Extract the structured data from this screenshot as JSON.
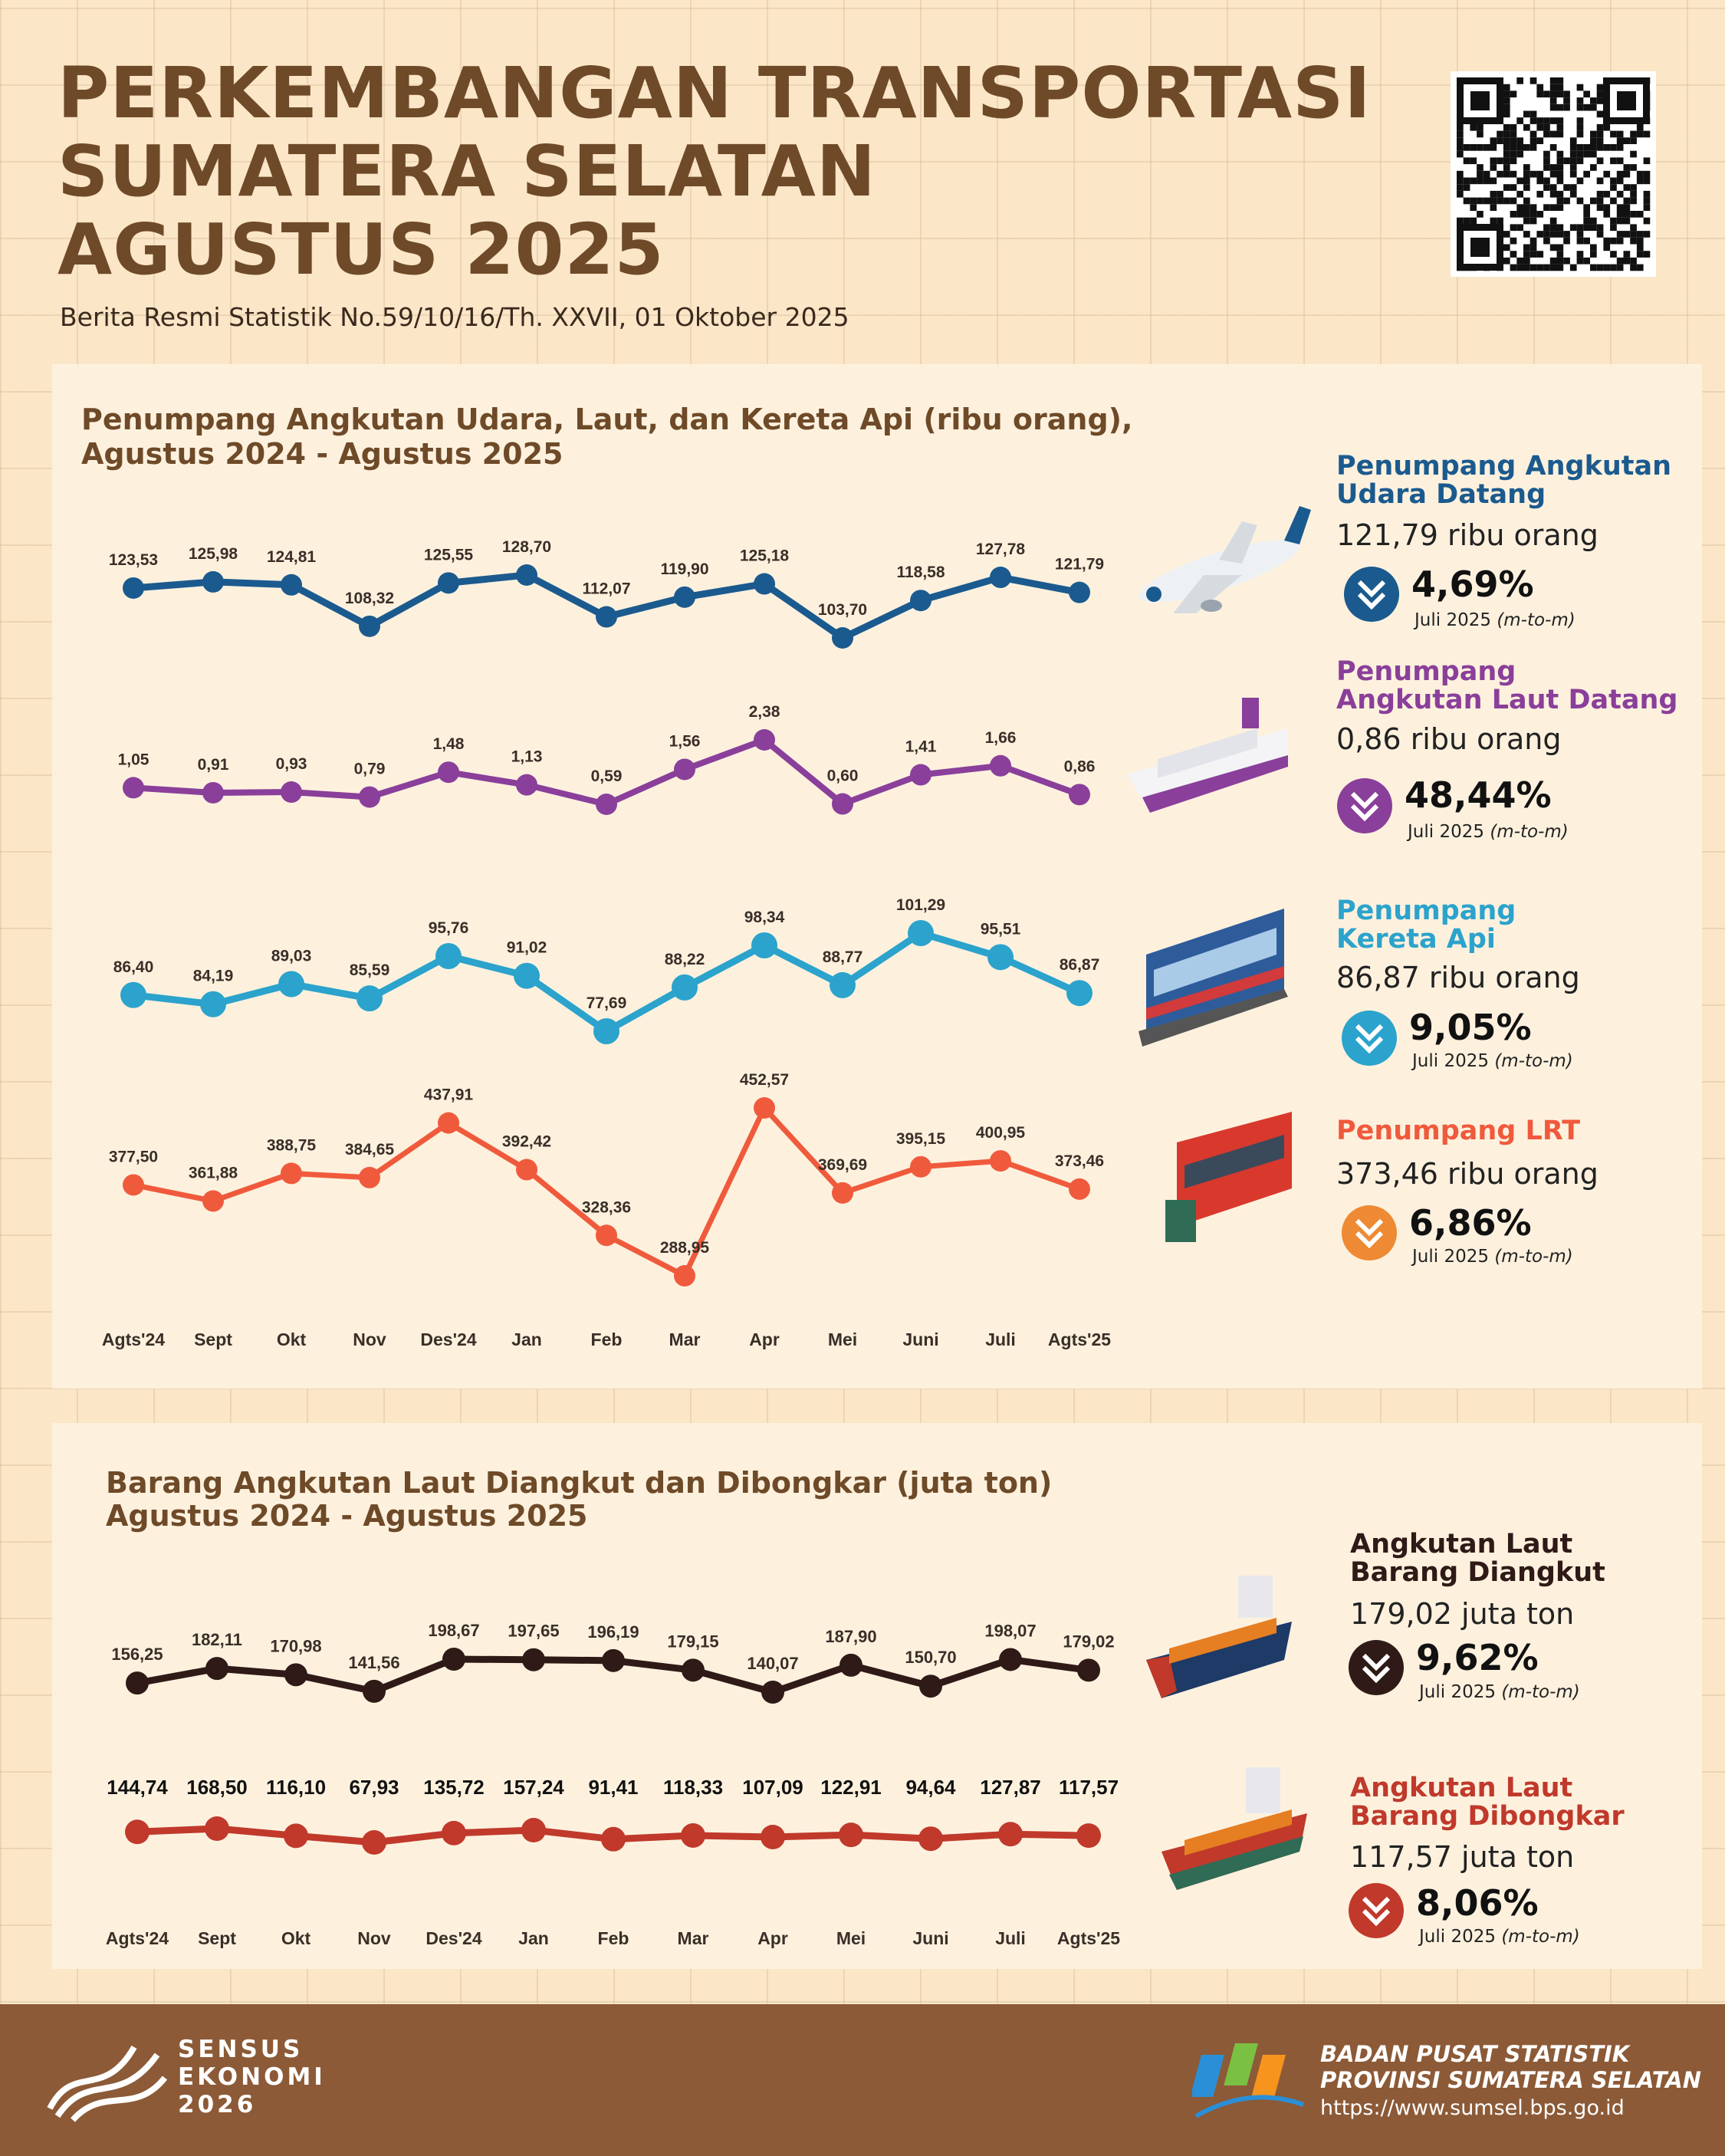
{
  "header": {
    "title_lines": [
      "PERKEMBANGAN TRANSPORTASI",
      "SUMATERA SELATAN",
      "AGUSTUS 2025"
    ],
    "subtitle": "Berita Resmi Statistik No.59/10/16/Th. XXVII, 01 Oktober 2025",
    "qr_icon": "qr-code"
  },
  "panel1": {
    "heading_lines": [
      "Penumpang Angkutan Udara, Laut, dan Kereta Api (ribu orang),",
      "Agustus 2024 - Agustus 2025"
    ]
  },
  "panel2": {
    "heading_lines": [
      "Barang Angkutan Laut Diangkut dan Dibongkar (juta ton)",
      "Agustus 2024 - Agustus 2025"
    ]
  },
  "summaries": [
    {
      "title_lines": [
        "Penumpang Angkutan",
        "Udara Datang"
      ],
      "value": "121,79 ribu orang",
      "pct": "4,69%",
      "sub": "Juli 2025",
      "sub_italic": "(m-to-m)",
      "color": "#1b5a8e",
      "circle_color": "#1b5a8e",
      "icon": "airplane",
      "trend": "down"
    },
    {
      "title_lines": [
        "Penumpang",
        "Angkutan Laut Datang"
      ],
      "value": "0,86 ribu orang",
      "pct": "48,44%",
      "sub": "Juli 2025",
      "sub_italic": "(m-to-m)",
      "color": "#8a3f9a",
      "circle_color": "#8a3f9a",
      "icon": "passenger-ship",
      "trend": "down"
    },
    {
      "title_lines": [
        "Penumpang",
        "Kereta Api"
      ],
      "value": "86,87 ribu orang",
      "pct": "9,05%",
      "sub": "Juli 2025",
      "sub_italic": "(m-to-m)",
      "color": "#2ba3cc",
      "circle_color": "#2ba3cc",
      "icon": "train",
      "trend": "down"
    },
    {
      "title_lines": [
        "Penumpang LRT"
      ],
      "value": "373,46 ribu orang",
      "pct": "6,86%",
      "sub": "Juli 2025",
      "sub_italic": "(m-to-m)",
      "color": "#f05a3c",
      "circle_color": "#ee8a33",
      "icon": "lrt",
      "trend": "down"
    },
    {
      "title_lines": [
        "Angkutan Laut",
        "Barang Diangkut"
      ],
      "value": "179,02 juta ton",
      "pct": "9,62%",
      "sub": "Juli 2025",
      "sub_italic": "(m-to-m)",
      "color": "#2f1a17",
      "circle_color": "#2f1a17",
      "icon": "cargo-ship",
      "trend": "down"
    },
    {
      "title_lines": [
        "Angkutan Laut",
        "Barang Dibongkar"
      ],
      "value": "117,57 juta ton",
      "pct": "8,06%",
      "sub": "Juli 2025",
      "sub_italic": "(m-to-m)",
      "color": "#c0392b",
      "circle_color": "#c0392b",
      "icon": "cargo-ship",
      "trend": "down"
    }
  ],
  "chart_data": [
    {
      "type": "line",
      "title": "Penumpang Angkutan Udara, Laut, dan Kereta Api (ribu orang), Agustus 2024 - Agustus 2025",
      "categories": [
        "Agts'24",
        "Sept",
        "Okt",
        "Nov",
        "Des'24",
        "Jan",
        "Feb",
        "Mar",
        "Apr",
        "Mei",
        "Juni",
        "Juli",
        "Agts'25"
      ],
      "grid": false,
      "legend": "none",
      "series": [
        {
          "name": "Penumpang Angkutan Udara Datang",
          "color": "#1b5a8e",
          "values": [
            123.53,
            125.98,
            124.81,
            108.32,
            125.55,
            128.7,
            112.07,
            119.9,
            125.18,
            103.7,
            118.58,
            127.78,
            121.79
          ],
          "labels": [
            "123,53",
            "125,98",
            "124,81",
            "108,32",
            "125,55",
            "128,70",
            "112,07",
            "119,90",
            "125,18",
            "103,70",
            "118,58",
            "127,78",
            "121,79"
          ]
        },
        {
          "name": "Penumpang Angkutan Laut Datang",
          "color": "#8a3f9a",
          "values": [
            1.05,
            0.91,
            0.93,
            0.79,
            1.48,
            1.13,
            0.59,
            1.56,
            2.38,
            0.6,
            1.41,
            1.66,
            0.86
          ],
          "labels": [
            "1,05",
            "0,91",
            "0,93",
            "0,79",
            "1,48",
            "1,13",
            "0,59",
            "1,56",
            "2,38",
            "0,60",
            "1,41",
            "1,66",
            "0,86"
          ]
        },
        {
          "name": "Penumpang Kereta Api",
          "color": "#2ba3cc",
          "values": [
            86.4,
            84.19,
            89.03,
            85.59,
            95.76,
            91.02,
            77.69,
            88.22,
            98.34,
            88.77,
            101.29,
            95.51,
            86.87
          ],
          "labels": [
            "86,40",
            "84,19",
            "89,03",
            "85,59",
            "95,76",
            "91,02",
            "77,69",
            "88,22",
            "98,34",
            "88,77",
            "101,29",
            "95,51",
            "86,87"
          ]
        },
        {
          "name": "Penumpang LRT",
          "color": "#f05a3c",
          "values": [
            377.5,
            361.88,
            388.75,
            384.65,
            437.91,
            392.42,
            328.36,
            288.95,
            452.57,
            369.69,
            395.15,
            400.95,
            373.46
          ],
          "labels": [
            "377,50",
            "361,88",
            "388,75",
            "384,65",
            "437,91",
            "392,42",
            "328,36",
            "288,95",
            "452,57",
            "369,69",
            "395,15",
            "400,95",
            "373,46"
          ]
        }
      ]
    },
    {
      "type": "line",
      "title": "Barang Angkutan Laut Diangkut dan Dibongkar (juta ton) Agustus 2024 - Agustus 2025",
      "categories": [
        "Agts'24",
        "Sept",
        "Okt",
        "Nov",
        "Des'24",
        "Jan",
        "Feb",
        "Mar",
        "Apr",
        "Mei",
        "Juni",
        "Juli",
        "Agts'25"
      ],
      "grid": false,
      "legend": "none",
      "series": [
        {
          "name": "Angkutan Laut Barang Diangkut",
          "color": "#2f1a17",
          "values": [
            156.25,
            182.11,
            170.98,
            141.56,
            198.67,
            197.65,
            196.19,
            179.15,
            140.07,
            187.9,
            150.7,
            198.07,
            179.02
          ],
          "labels": [
            "156,25",
            "182,11",
            "170,98",
            "141,56",
            "198,67",
            "197,65",
            "196,19",
            "179,15",
            "140,07",
            "187,90",
            "150,70",
            "198,07",
            "179,02"
          ]
        },
        {
          "name": "Angkutan Laut Barang Dibongkar",
          "color": "#c0392b",
          "values": [
            144.74,
            168.5,
            116.1,
            67.93,
            135.72,
            157.24,
            91.41,
            118.33,
            107.09,
            122.91,
            94.64,
            127.87,
            117.57
          ],
          "labels": [
            "144,74",
            "168,50",
            "116,10",
            "67,93",
            "135,72",
            "157,24",
            "91,41",
            "118,33",
            "107,09",
            "122,91",
            "94,64",
            "127,87",
            "117,57"
          ]
        }
      ]
    }
  ],
  "footer": {
    "sensus_lines": [
      "SENSUS",
      "EKONOMI",
      "2026"
    ],
    "bps_lines": [
      "BADAN PUSAT STATISTIK",
      "PROVINSI SUMATERA SELATAN"
    ],
    "url": "https://www.sumsel.bps.go.id"
  }
}
